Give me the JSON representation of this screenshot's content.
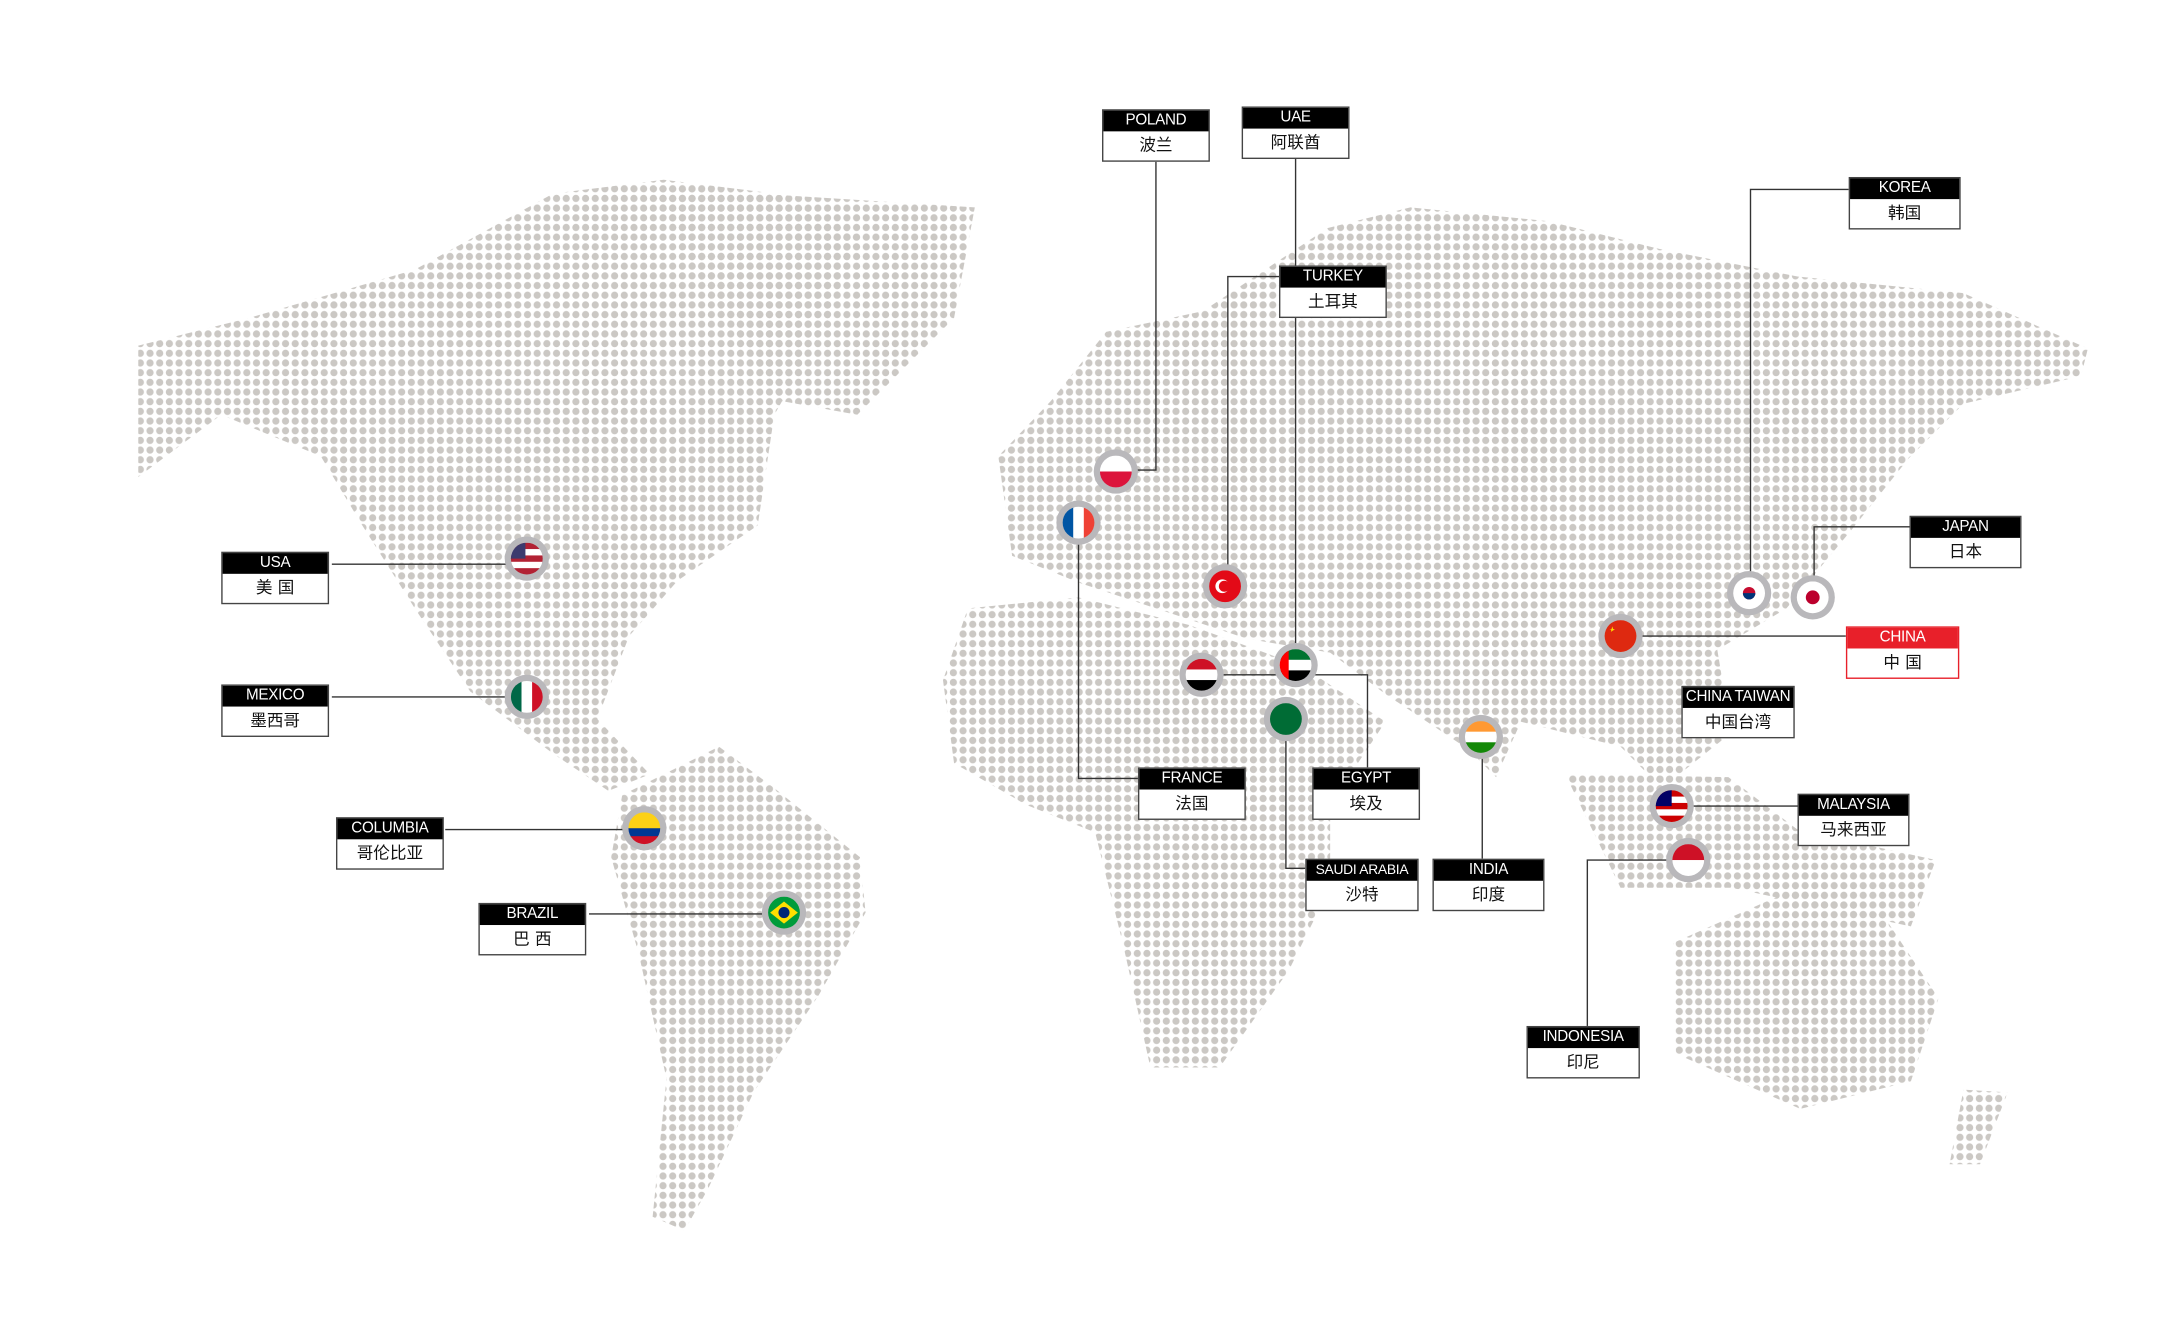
{
  "colors": {
    "dots": "#cbc8c4",
    "label_header": "#000000",
    "highlight": "#e8202a",
    "connector": "#333333"
  },
  "highlighted_country": "china",
  "labels": {
    "usa": {
      "en": "USA",
      "zh": "美 国"
    },
    "mexico": {
      "en": "MEXICO",
      "zh": "墨西哥"
    },
    "columbia": {
      "en": "COLUMBIA",
      "zh": "哥伦比亚"
    },
    "brazil": {
      "en": "BRAZIL",
      "zh": "巴 西"
    },
    "poland": {
      "en": "POLAND",
      "zh": "波兰"
    },
    "uae": {
      "en": "UAE",
      "zh": "阿联酋"
    },
    "turkey": {
      "en": "TURKEY",
      "zh": "土耳其"
    },
    "france": {
      "en": "FRANCE",
      "zh": "法国"
    },
    "egypt": {
      "en": "EGYPT",
      "zh": "埃及"
    },
    "saudi": {
      "en": "SAUDI ARABIA",
      "zh": "沙特"
    },
    "india": {
      "en": "INDIA",
      "zh": "印度"
    },
    "korea": {
      "en": "KOREA",
      "zh": "韩国"
    },
    "japan": {
      "en": "JAPAN",
      "zh": "日本"
    },
    "china": {
      "en": "CHINA",
      "zh": "中 国"
    },
    "taiwan": {
      "en": "CHINA TAIWAN",
      "zh": "中国台湾"
    },
    "malaysia": {
      "en": "MALAYSIA",
      "zh": "马来西亚"
    },
    "indonesia": {
      "en": "INDONESIA",
      "zh": "印尼"
    }
  }
}
